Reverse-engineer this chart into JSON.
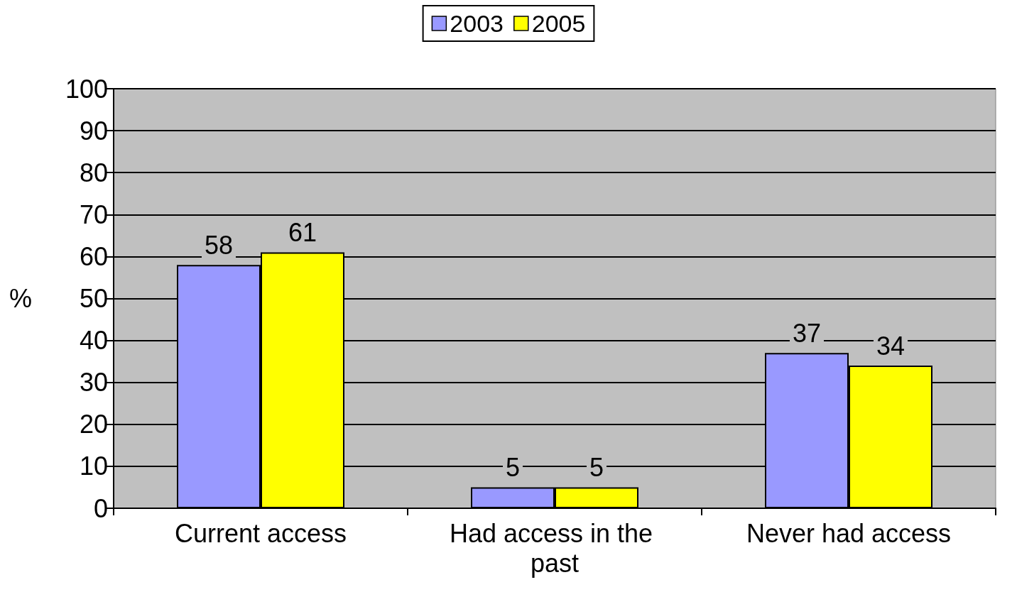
{
  "chart_data": {
    "type": "bar",
    "categories": [
      "Current access",
      "Had access in the past",
      "Never had access"
    ],
    "series": [
      {
        "name": "2003",
        "color": "#9999ff",
        "values": [
          58,
          5,
          37
        ]
      },
      {
        "name": "2005",
        "color": "#ffff00",
        "values": [
          61,
          5,
          34
        ]
      }
    ],
    "ylabel": "%",
    "ylim": [
      0,
      100
    ],
    "yticks": [
      0,
      10,
      20,
      30,
      40,
      50,
      60,
      70,
      80,
      90,
      100
    ],
    "grid": "y",
    "legend": "top",
    "data_labels": true
  }
}
